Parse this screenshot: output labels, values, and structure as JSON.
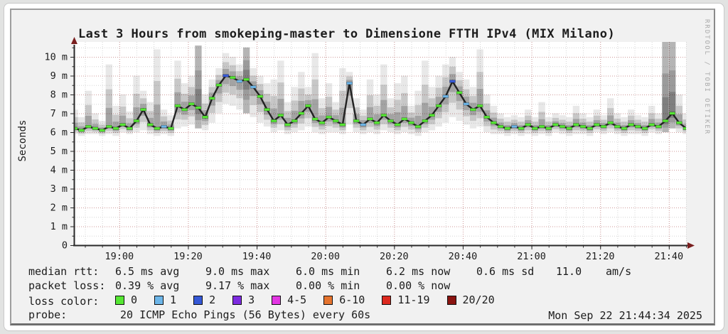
{
  "header": {
    "title": "Last 3 Hours from smokeping-master to Dimensione FTTH IPv4 (MIX Milano)"
  },
  "watermark": "RRDTOOL / TOBI OETIKER",
  "chart_data": {
    "type": "area",
    "subtype": "smokeping-latency-smoke-plot",
    "title": "Last 3 Hours from smokeping-master to Dimensione FTTH IPv4 (MIX Milano)",
    "xlabel": "",
    "ylabel": "Seconds",
    "ylim": [
      0,
      10.79
    ],
    "y_unit": "m",
    "grid": "on",
    "time_start_label": "18:47",
    "time_span_minutes": 178,
    "x_ticks": [
      {
        "min": 13,
        "label": "19:00"
      },
      {
        "min": 33,
        "label": "19:20"
      },
      {
        "min": 53,
        "label": "19:40"
      },
      {
        "min": 73,
        "label": "20:00"
      },
      {
        "min": 93,
        "label": "20:20"
      },
      {
        "min": 113,
        "label": "20:40"
      },
      {
        "min": 133,
        "label": "21:00"
      },
      {
        "min": 153,
        "label": "21:20"
      },
      {
        "min": 173,
        "label": "21:40"
      }
    ],
    "y_ticks": [
      {
        "v": 0,
        "label": "0"
      },
      {
        "v": 1,
        "label": "1 m"
      },
      {
        "v": 2,
        "label": "2 m"
      },
      {
        "v": 3,
        "label": "3 m"
      },
      {
        "v": 4,
        "label": "4 m"
      },
      {
        "v": 5,
        "label": "5 m"
      },
      {
        "v": 6,
        "label": "6 m"
      },
      {
        "v": 7,
        "label": "7 m"
      },
      {
        "v": 8,
        "label": "8 m"
      },
      {
        "v": 9,
        "label": "9 m"
      },
      {
        "v": 10,
        "label": "10 m"
      }
    ],
    "series": [
      {
        "name": "median rtt (ms) with smoke spread [minute_offset, median, low, high, loss_color_index]",
        "points": [
          [
            0,
            6.2,
            5.9,
            7.2,
            0
          ],
          [
            2,
            6.1,
            5.8,
            6.8,
            0
          ],
          [
            4,
            6.3,
            5.9,
            8.2,
            0
          ],
          [
            6,
            6.2,
            5.9,
            7.0,
            0
          ],
          [
            8,
            6.1,
            5.8,
            6.6,
            0
          ],
          [
            10,
            6.3,
            5.9,
            9.6,
            0
          ],
          [
            12,
            6.2,
            5.8,
            7.4,
            0
          ],
          [
            14,
            6.4,
            6.0,
            8.0,
            0
          ],
          [
            16,
            6.2,
            5.9,
            7.1,
            0
          ],
          [
            18,
            6.6,
            6.0,
            9.0,
            0
          ],
          [
            20,
            7.2,
            6.1,
            8.2,
            0
          ],
          [
            22,
            6.4,
            5.9,
            7.6,
            0
          ],
          [
            24,
            6.2,
            5.8,
            10.4,
            0
          ],
          [
            26,
            6.3,
            5.9,
            7.2,
            1
          ],
          [
            28,
            6.2,
            5.8,
            6.9,
            0
          ],
          [
            30,
            7.4,
            6.2,
            9.8,
            0
          ],
          [
            32,
            7.2,
            6.3,
            8.6,
            0
          ],
          [
            34,
            7.5,
            6.4,
            9.0,
            0
          ],
          [
            36,
            7.3,
            6.2,
            10.6,
            0
          ],
          [
            38,
            6.8,
            6.1,
            8.0,
            0
          ],
          [
            40,
            7.8,
            6.5,
            8.8,
            0
          ],
          [
            42,
            8.5,
            7.0,
            9.4,
            0
          ],
          [
            44,
            9.0,
            7.5,
            10.2,
            2
          ],
          [
            46,
            8.9,
            7.4,
            10.0,
            0
          ],
          [
            48,
            8.7,
            7.2,
            9.6,
            1
          ],
          [
            50,
            8.8,
            7.0,
            10.5,
            0
          ],
          [
            52,
            8.4,
            6.8,
            9.4,
            1
          ],
          [
            54,
            7.9,
            6.5,
            9.0,
            0
          ],
          [
            56,
            7.2,
            6.3,
            8.6,
            0
          ],
          [
            58,
            6.6,
            6.0,
            8.8,
            0
          ],
          [
            60,
            6.9,
            6.1,
            9.8,
            0
          ],
          [
            62,
            6.4,
            5.9,
            7.6,
            0
          ],
          [
            64,
            6.6,
            6.0,
            8.4,
            0
          ],
          [
            66,
            7.0,
            6.1,
            9.2,
            0
          ],
          [
            68,
            7.4,
            6.3,
            8.4,
            0
          ],
          [
            70,
            6.7,
            6.0,
            10.2,
            0
          ],
          [
            72,
            6.5,
            5.9,
            7.8,
            0
          ],
          [
            74,
            6.8,
            6.0,
            8.6,
            0
          ],
          [
            76,
            6.6,
            6.0,
            7.6,
            0
          ],
          [
            78,
            6.4,
            5.9,
            9.4,
            0
          ],
          [
            80,
            8.6,
            6.4,
            9.2,
            1
          ],
          [
            82,
            6.6,
            6.0,
            7.8,
            0
          ],
          [
            84,
            6.4,
            5.9,
            7.2,
            1
          ],
          [
            86,
            6.7,
            6.0,
            8.8,
            0
          ],
          [
            88,
            6.5,
            5.9,
            8.0,
            0
          ],
          [
            90,
            6.9,
            6.1,
            9.6,
            0
          ],
          [
            92,
            6.6,
            6.0,
            7.8,
            0
          ],
          [
            94,
            6.4,
            5.9,
            8.6,
            0
          ],
          [
            96,
            6.7,
            6.0,
            9.0,
            0
          ],
          [
            98,
            6.5,
            5.9,
            7.4,
            0
          ],
          [
            100,
            6.3,
            5.8,
            8.2,
            0
          ],
          [
            102,
            6.6,
            6.0,
            9.8,
            0
          ],
          [
            104,
            6.9,
            6.1,
            8.4,
            0
          ],
          [
            106,
            7.4,
            6.3,
            9.0,
            0
          ],
          [
            108,
            7.9,
            6.5,
            9.6,
            1
          ],
          [
            110,
            8.7,
            6.8,
            10.0,
            2
          ],
          [
            112,
            8.1,
            6.6,
            9.2,
            0
          ],
          [
            114,
            7.5,
            6.4,
            8.8,
            1
          ],
          [
            116,
            7.2,
            6.2,
            8.4,
            0
          ],
          [
            118,
            7.4,
            6.3,
            10.4,
            0
          ],
          [
            120,
            6.8,
            6.0,
            8.0,
            0
          ],
          [
            122,
            6.5,
            5.9,
            7.4,
            0
          ],
          [
            124,
            6.3,
            5.9,
            7.0,
            0
          ],
          [
            126,
            6.2,
            5.8,
            6.8,
            0
          ],
          [
            128,
            6.3,
            5.9,
            6.9,
            1
          ],
          [
            130,
            6.2,
            5.8,
            6.8,
            0
          ],
          [
            132,
            6.4,
            5.9,
            7.2,
            0
          ],
          [
            134,
            6.2,
            5.8,
            6.8,
            0
          ],
          [
            136,
            6.3,
            5.9,
            7.6,
            0
          ],
          [
            138,
            6.2,
            5.8,
            6.8,
            0
          ],
          [
            140,
            6.4,
            6.0,
            7.0,
            0
          ],
          [
            142,
            6.3,
            5.9,
            6.9,
            0
          ],
          [
            144,
            6.2,
            5.8,
            6.8,
            0
          ],
          [
            146,
            6.4,
            5.9,
            7.4,
            0
          ],
          [
            148,
            6.3,
            5.9,
            7.0,
            0
          ],
          [
            150,
            6.2,
            5.8,
            6.8,
            0
          ],
          [
            152,
            6.4,
            6.0,
            7.2,
            0
          ],
          [
            154,
            6.3,
            5.9,
            6.9,
            0
          ],
          [
            156,
            6.5,
            6.0,
            7.8,
            0
          ],
          [
            158,
            6.3,
            5.9,
            7.0,
            0
          ],
          [
            160,
            6.2,
            5.8,
            6.8,
            0
          ],
          [
            162,
            6.4,
            5.9,
            7.2,
            0
          ],
          [
            164,
            6.3,
            5.9,
            6.9,
            0
          ],
          [
            166,
            6.2,
            5.8,
            6.8,
            0
          ],
          [
            168,
            6.4,
            6.0,
            7.4,
            0
          ],
          [
            170,
            6.3,
            5.9,
            7.0,
            0
          ],
          [
            172,
            6.6,
            6.0,
            10.8,
            0
          ],
          [
            174,
            7.0,
            6.2,
            10.8,
            0
          ],
          [
            176,
            6.5,
            6.0,
            8.0,
            0
          ],
          [
            178,
            6.2,
            5.9,
            7.0,
            0
          ]
        ]
      }
    ],
    "colors": {
      "median_loss0": "#55e733",
      "median_loss1": "#6cb5e8",
      "median_loss2": "#3558d6",
      "median_line": "#222222",
      "smoke": "#000000",
      "grid_major": "#cf9a9a",
      "grid_minor": "#d6d6d6",
      "axis": "#2a2a2a",
      "arrow": "#7a1f1f",
      "plot_bg": "#ffffff"
    }
  },
  "stats": {
    "median_rtt": {
      "label": "median rtt:",
      "avg": "6.5 ms avg",
      "max": "9.0 ms max",
      "min": "6.0 ms min",
      "now": "6.2 ms now",
      "sd": "0.6 ms sd",
      "slope_value": "11.0",
      "slope_unit": "am/s"
    },
    "packet_loss": {
      "label": "packet loss:",
      "avg": "0.39 % avg",
      "max": "9.17 % max",
      "min": "0.00 % min",
      "now": "0.00 % now"
    }
  },
  "loss_legend": {
    "label": "loss color:",
    "items": [
      {
        "label": "0",
        "color": "#55e733"
      },
      {
        "label": "1",
        "color": "#6cb5e8"
      },
      {
        "label": "2",
        "color": "#3558d6"
      },
      {
        "label": "3",
        "color": "#7d2be0"
      },
      {
        "label": "4-5",
        "color": "#e336e3"
      },
      {
        "label": "6-10",
        "color": "#e5732e"
      },
      {
        "label": "11-19",
        "color": "#dd2a1f"
      },
      {
        "label": "20/20",
        "color": "#8a1410"
      }
    ]
  },
  "probe": {
    "label": "probe:",
    "value": "20 ICMP Echo Pings (56 Bytes) every 60s"
  },
  "timestamp": "Mon Sep 22 21:44:34 2025"
}
